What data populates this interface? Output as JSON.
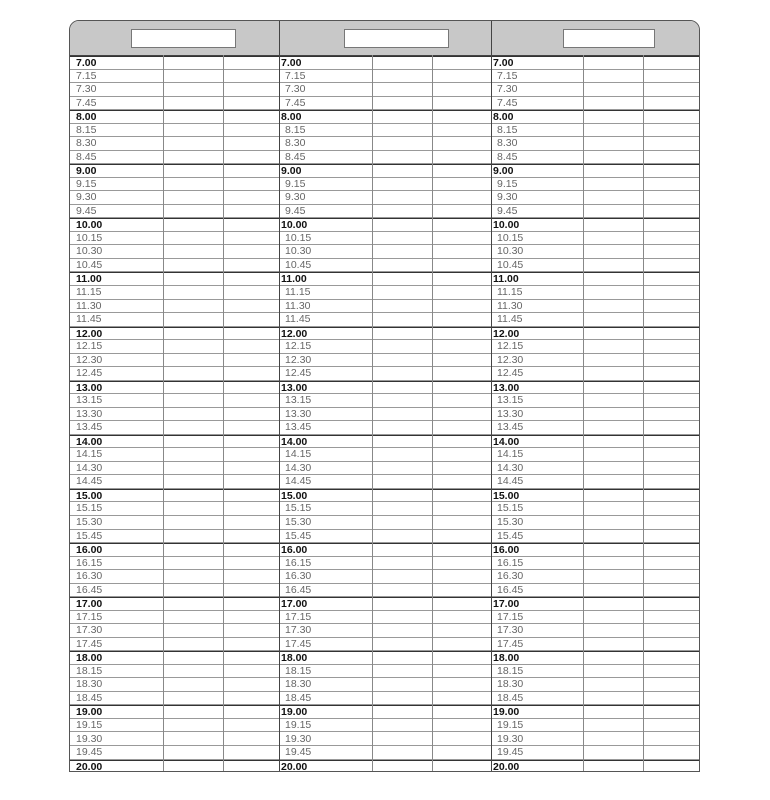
{
  "times": [
    "7.00",
    "7.15",
    "7.30",
    "7.45",
    "8.00",
    "8.15",
    "8.30",
    "8.45",
    "9.00",
    "9.15",
    "9.30",
    "9.45",
    "10.00",
    "10.15",
    "10.30",
    "10.45",
    "11.00",
    "11.15",
    "11.30",
    "11.45",
    "12.00",
    "12.15",
    "12.30",
    "12.45",
    "13.00",
    "13.15",
    "13.30",
    "13.45",
    "14.00",
    "14.15",
    "14.30",
    "14.45",
    "15.00",
    "15.15",
    "15.30",
    "15.45",
    "16.00",
    "16.15",
    "16.30",
    "16.45",
    "17.00",
    "17.15",
    "17.30",
    "17.45",
    "18.00",
    "18.15",
    "18.30",
    "18.45",
    "19.00",
    "19.15",
    "19.30",
    "19.45",
    "20.00"
  ],
  "columns": [
    {
      "title": ""
    },
    {
      "title": ""
    },
    {
      "title": ""
    }
  ],
  "colors": {
    "header": "#c8c8c8",
    "border": "#444444"
  }
}
